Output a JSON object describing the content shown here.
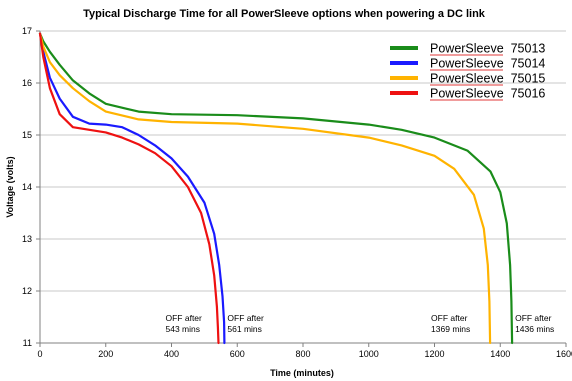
{
  "chart_data": {
    "type": "line",
    "title": "Typical Discharge Time for all PowerSleeve options when powering a DC link",
    "xlabel": "Time (minutes)",
    "ylabel": "Voltage (volts)",
    "xlim": [
      0,
      1600
    ],
    "ylim": [
      11,
      17
    ],
    "xticks": [
      0,
      200,
      400,
      600,
      800,
      1000,
      1200,
      1400,
      1600
    ],
    "yticks": [
      11,
      12,
      13,
      14,
      15,
      16,
      17
    ],
    "grid": "horizontal",
    "legend_position": "top-right",
    "series": [
      {
        "name": "PowerSleeve  75013",
        "color": "#1a8c1a",
        "points": [
          [
            0,
            16.95
          ],
          [
            10,
            16.8
          ],
          [
            30,
            16.6
          ],
          [
            60,
            16.35
          ],
          [
            100,
            16.05
          ],
          [
            150,
            15.8
          ],
          [
            200,
            15.6
          ],
          [
            300,
            15.45
          ],
          [
            400,
            15.4
          ],
          [
            600,
            15.38
          ],
          [
            800,
            15.32
          ],
          [
            1000,
            15.2
          ],
          [
            1100,
            15.1
          ],
          [
            1200,
            14.95
          ],
          [
            1300,
            14.7
          ],
          [
            1370,
            14.3
          ],
          [
            1400,
            13.9
          ],
          [
            1420,
            13.3
          ],
          [
            1430,
            12.5
          ],
          [
            1434,
            11.8
          ],
          [
            1436,
            11
          ]
        ]
      },
      {
        "name": "PowerSleeve  75014",
        "color": "#1a1aff",
        "points": [
          [
            0,
            16.95
          ],
          [
            10,
            16.6
          ],
          [
            30,
            16.1
          ],
          [
            60,
            15.7
          ],
          [
            100,
            15.35
          ],
          [
            150,
            15.22
          ],
          [
            200,
            15.2
          ],
          [
            250,
            15.15
          ],
          [
            300,
            15.0
          ],
          [
            350,
            14.8
          ],
          [
            400,
            14.55
          ],
          [
            450,
            14.2
          ],
          [
            500,
            13.7
          ],
          [
            530,
            13.1
          ],
          [
            545,
            12.5
          ],
          [
            555,
            11.9
          ],
          [
            560,
            11.4
          ],
          [
            561,
            11
          ]
        ]
      },
      {
        "name": "PowerSleeve  75015",
        "color": "#ffb300",
        "points": [
          [
            0,
            16.95
          ],
          [
            10,
            16.7
          ],
          [
            30,
            16.4
          ],
          [
            60,
            16.15
          ],
          [
            100,
            15.9
          ],
          [
            150,
            15.65
          ],
          [
            200,
            15.45
          ],
          [
            300,
            15.3
          ],
          [
            400,
            15.25
          ],
          [
            600,
            15.22
          ],
          [
            800,
            15.12
          ],
          [
            1000,
            14.95
          ],
          [
            1100,
            14.8
          ],
          [
            1200,
            14.6
          ],
          [
            1260,
            14.35
          ],
          [
            1320,
            13.85
          ],
          [
            1350,
            13.2
          ],
          [
            1362,
            12.5
          ],
          [
            1367,
            11.8
          ],
          [
            1369,
            11
          ]
        ]
      },
      {
        "name": "PowerSleeve  75016",
        "color": "#ee1111",
        "points": [
          [
            0,
            16.95
          ],
          [
            10,
            16.5
          ],
          [
            30,
            15.9
          ],
          [
            60,
            15.4
          ],
          [
            100,
            15.15
          ],
          [
            150,
            15.1
          ],
          [
            200,
            15.05
          ],
          [
            250,
            14.95
          ],
          [
            300,
            14.82
          ],
          [
            350,
            14.65
          ],
          [
            400,
            14.4
          ],
          [
            450,
            14.0
          ],
          [
            490,
            13.5
          ],
          [
            515,
            12.9
          ],
          [
            530,
            12.3
          ],
          [
            538,
            11.7
          ],
          [
            541,
            11.3
          ],
          [
            543,
            11
          ]
        ]
      }
    ],
    "annotations": [
      {
        "x": 543,
        "lines": [
          "OFF after",
          "543 mins"
        ]
      },
      {
        "x": 561,
        "lines": [
          "OFF after",
          "561 mins"
        ]
      },
      {
        "x": 1369,
        "lines": [
          "OFF after",
          "1369 mins"
        ]
      },
      {
        "x": 1436,
        "lines": [
          "OFF after",
          "1436 mins"
        ]
      }
    ]
  }
}
